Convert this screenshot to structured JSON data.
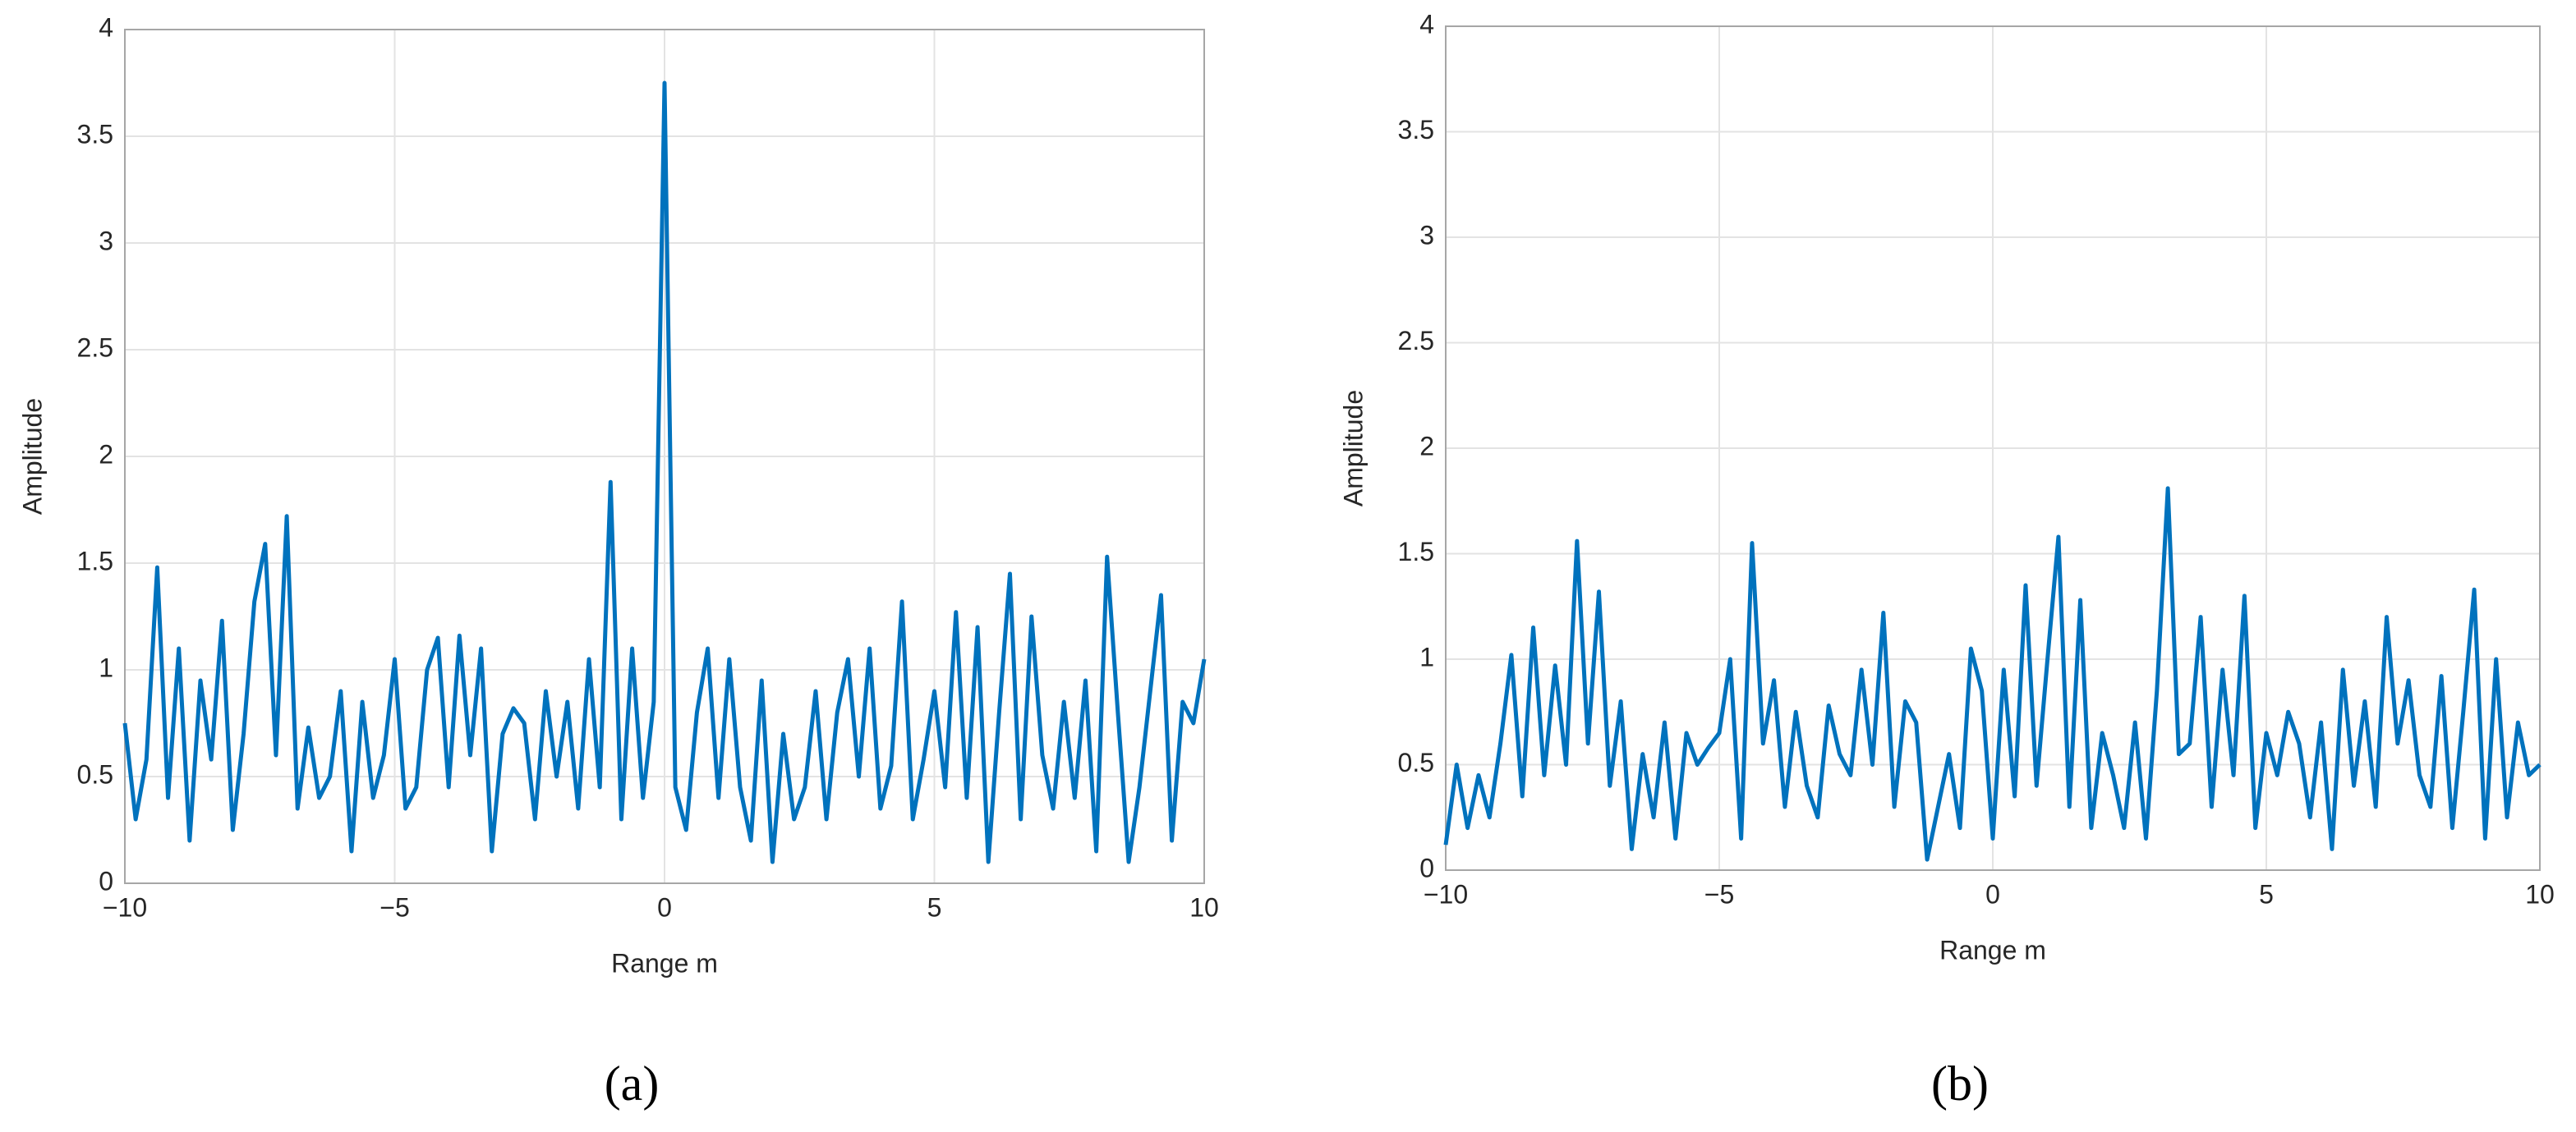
{
  "chart_data": [
    {
      "type": "line",
      "caption": "(a)",
      "xlabel": "Range m",
      "ylabel": "Amplitude",
      "xlim": [
        -10,
        10
      ],
      "ylim": [
        0,
        4
      ],
      "xticks": [
        {
          "value": -10,
          "label": "−10"
        },
        {
          "value": -5,
          "label": "−5"
        },
        0,
        5,
        10
      ],
      "yticks": [
        0,
        0.5,
        1,
        1.5,
        2,
        2.5,
        3,
        3.5,
        4
      ],
      "grid": true,
      "x": [
        -10,
        -9.8,
        -9.6,
        -9.4,
        -9.2,
        -9,
        -8.8,
        -8.6,
        -8.4,
        -8.2,
        -8,
        -7.8,
        -7.6,
        -7.4,
        -7.2,
        -7,
        -6.8,
        -6.6,
        -6.4,
        -6.2,
        -6,
        -5.8,
        -5.6,
        -5.4,
        -5.2,
        -5,
        -4.8,
        -4.6,
        -4.4,
        -4.2,
        -4,
        -3.8,
        -3.6,
        -3.4,
        -3.2,
        -3,
        -2.8,
        -2.6,
        -2.4,
        -2.2,
        -2,
        -1.8,
        -1.6,
        -1.4,
        -1.2,
        -1,
        -0.8,
        -0.6,
        -0.4,
        -0.2,
        0,
        0.2,
        0.4,
        0.6,
        0.8,
        1,
        1.2,
        1.4,
        1.6,
        1.8,
        2,
        2.2,
        2.4,
        2.6,
        2.8,
        3,
        3.2,
        3.4,
        3.6,
        3.8,
        4,
        4.2,
        4.4,
        4.6,
        4.8,
        5,
        5.2,
        5.4,
        5.6,
        5.8,
        6,
        6.2,
        6.4,
        6.6,
        6.8,
        7,
        7.2,
        7.4,
        7.6,
        7.8,
        8,
        8.2,
        8.4,
        8.6,
        8.8,
        9,
        9.2,
        9.4,
        9.6,
        9.8,
        10
      ],
      "series": [
        {
          "color": "#0072bd",
          "values": [
            0.75,
            0.3,
            0.58,
            1.48,
            0.4,
            1.1,
            0.2,
            0.95,
            0.58,
            1.23,
            0.25,
            0.7,
            1.32,
            1.59,
            0.6,
            1.72,
            0.35,
            0.73,
            0.4,
            0.5,
            0.9,
            0.15,
            0.85,
            0.4,
            0.6,
            1.05,
            0.35,
            0.45,
            1.0,
            1.15,
            0.45,
            1.16,
            0.6,
            1.1,
            0.15,
            0.7,
            0.82,
            0.75,
            0.3,
            0.9,
            0.5,
            0.85,
            0.35,
            1.05,
            0.45,
            1.88,
            0.3,
            1.1,
            0.4,
            0.85,
            3.75,
            0.45,
            0.25,
            0.8,
            1.1,
            0.4,
            1.05,
            0.45,
            0.2,
            0.95,
            0.1,
            0.7,
            0.3,
            0.45,
            0.9,
            0.3,
            0.8,
            1.05,
            0.5,
            1.1,
            0.35,
            0.55,
            1.32,
            0.3,
            0.58,
            0.9,
            0.45,
            1.27,
            0.4,
            1.2,
            0.1,
            0.8,
            1.45,
            0.3,
            1.25,
            0.6,
            0.35,
            0.85,
            0.4,
            0.95,
            0.15,
            1.53,
            0.8,
            0.1,
            0.45,
            0.9,
            1.35,
            0.2,
            0.85,
            0.75,
            1.05
          ]
        }
      ]
    },
    {
      "type": "line",
      "caption": "(b)",
      "xlabel": "Range m",
      "ylabel": "Amplitude",
      "xlim": [
        -10,
        10
      ],
      "ylim": [
        0,
        4
      ],
      "xticks": [
        {
          "value": -10,
          "label": "−10"
        },
        {
          "value": -5,
          "label": "−5"
        },
        0,
        5,
        10
      ],
      "yticks": [
        0,
        0.5,
        1,
        1.5,
        2,
        2.5,
        3,
        3.5,
        4
      ],
      "grid": true,
      "x": [
        -10,
        -9.8,
        -9.6,
        -9.4,
        -9.2,
        -9,
        -8.8,
        -8.6,
        -8.4,
        -8.2,
        -8,
        -7.8,
        -7.6,
        -7.4,
        -7.2,
        -7,
        -6.8,
        -6.6,
        -6.4,
        -6.2,
        -6,
        -5.8,
        -5.6,
        -5.4,
        -5.2,
        -5,
        -4.8,
        -4.6,
        -4.4,
        -4.2,
        -4,
        -3.8,
        -3.6,
        -3.4,
        -3.2,
        -3,
        -2.8,
        -2.6,
        -2.4,
        -2.2,
        -2,
        -1.8,
        -1.6,
        -1.4,
        -1.2,
        -1,
        -0.8,
        -0.6,
        -0.4,
        -0.2,
        0,
        0.2,
        0.4,
        0.6,
        0.8,
        1,
        1.2,
        1.4,
        1.6,
        1.8,
        2,
        2.2,
        2.4,
        2.6,
        2.8,
        3,
        3.2,
        3.4,
        3.6,
        3.8,
        4,
        4.2,
        4.4,
        4.6,
        4.8,
        5,
        5.2,
        5.4,
        5.6,
        5.8,
        6,
        6.2,
        6.4,
        6.6,
        6.8,
        7,
        7.2,
        7.4,
        7.6,
        7.8,
        8,
        8.2,
        8.4,
        8.6,
        8.8,
        9,
        9.2,
        9.4,
        9.6,
        9.8,
        10
      ],
      "series": [
        {
          "color": "#0072bd",
          "values": [
            0.12,
            0.5,
            0.2,
            0.45,
            0.25,
            0.6,
            1.02,
            0.35,
            1.15,
            0.45,
            0.97,
            0.5,
            1.56,
            0.6,
            1.32,
            0.4,
            0.8,
            0.1,
            0.55,
            0.25,
            0.7,
            0.15,
            0.65,
            0.5,
            0.58,
            0.65,
            1.0,
            0.15,
            1.55,
            0.6,
            0.9,
            0.3,
            0.75,
            0.4,
            0.25,
            0.78,
            0.55,
            0.45,
            0.95,
            0.5,
            1.22,
            0.3,
            0.8,
            0.7,
            0.05,
            0.3,
            0.55,
            0.2,
            1.05,
            0.85,
            0.15,
            0.95,
            0.35,
            1.35,
            0.4,
            1.0,
            1.58,
            0.3,
            1.28,
            0.2,
            0.65,
            0.45,
            0.2,
            0.7,
            0.15,
            0.85,
            1.81,
            0.55,
            0.6,
            1.2,
            0.3,
            0.95,
            0.45,
            1.3,
            0.2,
            0.65,
            0.45,
            0.75,
            0.6,
            0.25,
            0.7,
            0.1,
            0.95,
            0.4,
            0.8,
            0.3,
            1.2,
            0.6,
            0.9,
            0.45,
            0.3,
            0.92,
            0.2,
            0.75,
            1.33,
            0.15,
            1.0,
            0.25,
            0.7,
            0.45,
            0.5
          ]
        }
      ]
    }
  ]
}
